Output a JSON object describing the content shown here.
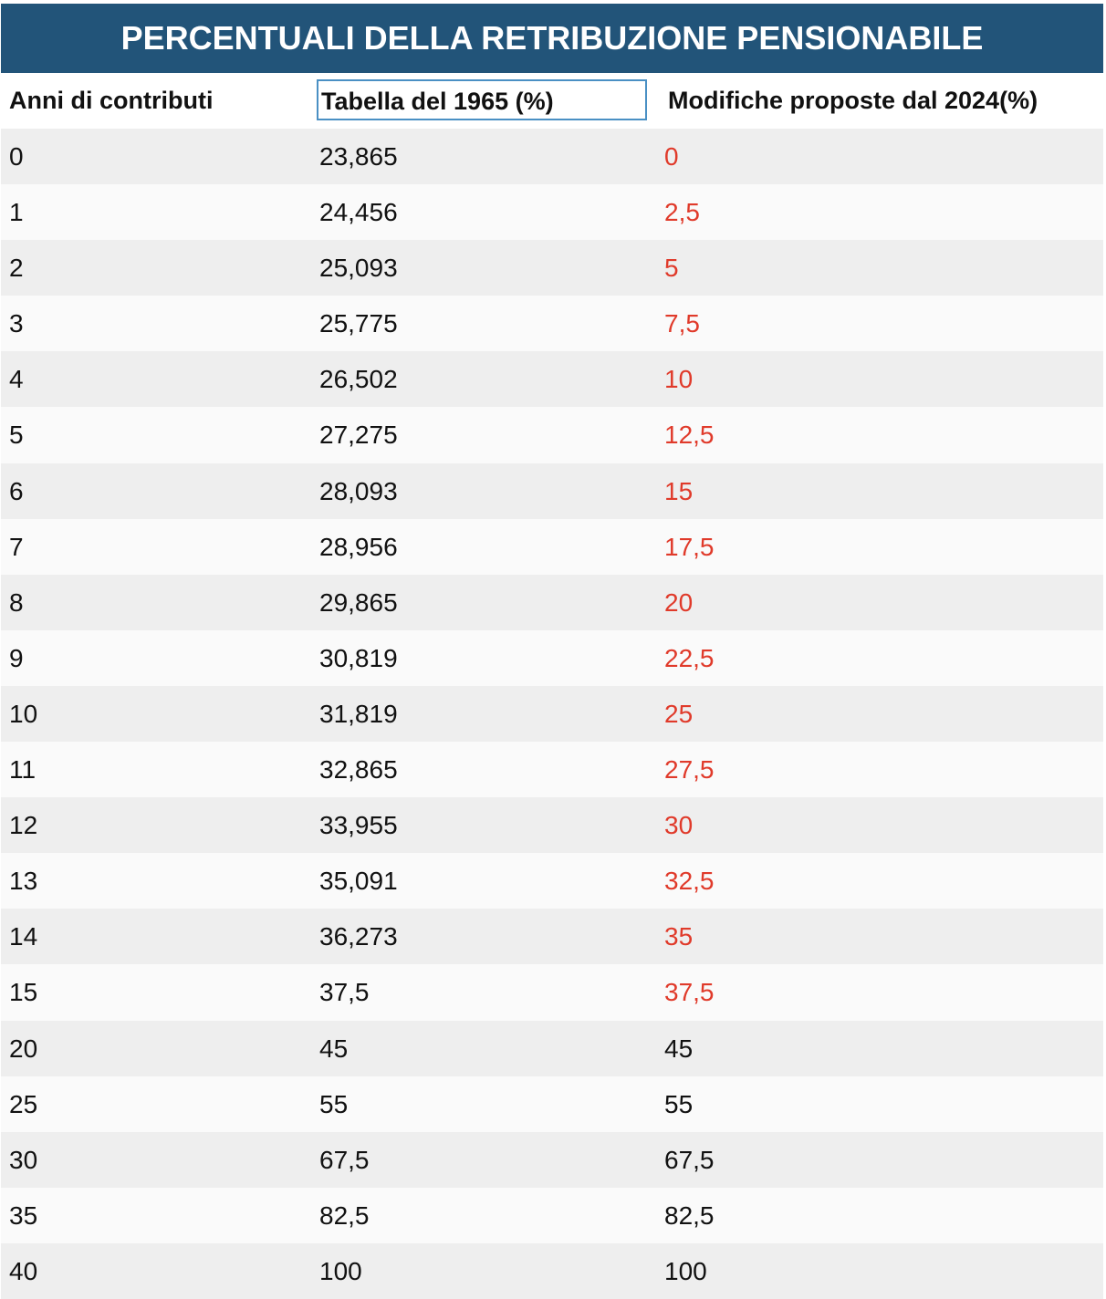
{
  "title": "PERCENTUALI DELLA RETRIBUZIONE PENSIONABILE",
  "columns": {
    "anni": "Anni di contributi",
    "tabella_1965": "Tabella del 1965 (%)",
    "modifiche_2024": "Modifiche proposte dal 2024(%)"
  },
  "colors": {
    "title_background": "#225479",
    "highlight_text": "#e03a2a",
    "selected_cell_border": "#4a90c4"
  },
  "rows": [
    {
      "anni": "0",
      "tabella_1965": "23,865",
      "modifiche_2024": "0",
      "changed": true
    },
    {
      "anni": "1",
      "tabella_1965": "24,456",
      "modifiche_2024": "2,5",
      "changed": true
    },
    {
      "anni": "2",
      "tabella_1965": "25,093",
      "modifiche_2024": "5",
      "changed": true
    },
    {
      "anni": "3",
      "tabella_1965": "25,775",
      "modifiche_2024": "7,5",
      "changed": true
    },
    {
      "anni": "4",
      "tabella_1965": "26,502",
      "modifiche_2024": "10",
      "changed": true
    },
    {
      "anni": "5",
      "tabella_1965": "27,275",
      "modifiche_2024": "12,5",
      "changed": true
    },
    {
      "anni": "6",
      "tabella_1965": "28,093",
      "modifiche_2024": "15",
      "changed": true
    },
    {
      "anni": "7",
      "tabella_1965": "28,956",
      "modifiche_2024": "17,5",
      "changed": true
    },
    {
      "anni": "8",
      "tabella_1965": "29,865",
      "modifiche_2024": "20",
      "changed": true
    },
    {
      "anni": "9",
      "tabella_1965": "30,819",
      "modifiche_2024": "22,5",
      "changed": true
    },
    {
      "anni": "10",
      "tabella_1965": "31,819",
      "modifiche_2024": "25",
      "changed": true
    },
    {
      "anni": "11",
      "tabella_1965": "32,865",
      "modifiche_2024": "27,5",
      "changed": true
    },
    {
      "anni": "12",
      "tabella_1965": "33,955",
      "modifiche_2024": "30",
      "changed": true
    },
    {
      "anni": "13",
      "tabella_1965": "35,091",
      "modifiche_2024": "32,5",
      "changed": true
    },
    {
      "anni": "14",
      "tabella_1965": "36,273",
      "modifiche_2024": "35",
      "changed": true
    },
    {
      "anni": "15",
      "tabella_1965": "37,5",
      "modifiche_2024": "37,5",
      "changed": true
    },
    {
      "anni": "20",
      "tabella_1965": "45",
      "modifiche_2024": "45",
      "changed": false
    },
    {
      "anni": "25",
      "tabella_1965": "55",
      "modifiche_2024": "55",
      "changed": false
    },
    {
      "anni": "30",
      "tabella_1965": "67,5",
      "modifiche_2024": "67,5",
      "changed": false
    },
    {
      "anni": "35",
      "tabella_1965": "82,5",
      "modifiche_2024": "82,5",
      "changed": false
    },
    {
      "anni": "40",
      "tabella_1965": "100",
      "modifiche_2024": "100",
      "changed": false
    }
  ]
}
